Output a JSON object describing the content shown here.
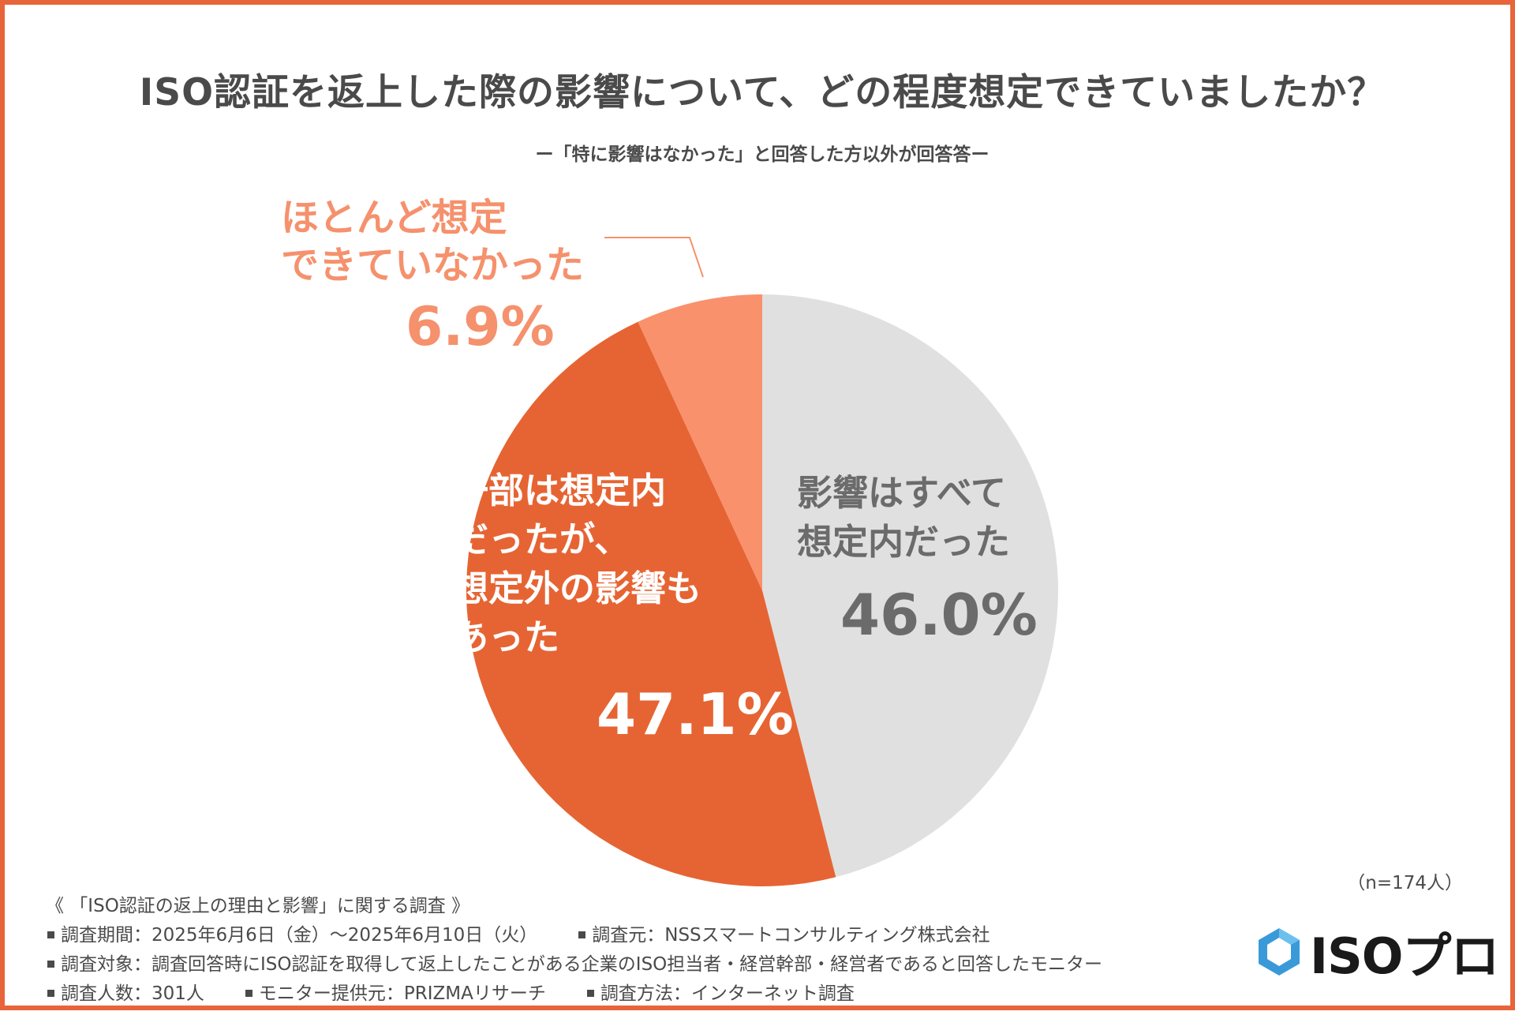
{
  "title": "ISO認証を返上した際の影響について、どの程度想定できていましたか？",
  "subtitle": "ー「特に影響はなかった」と回答した方以外が回答答ー",
  "chart_data": {
    "type": "pie",
    "title": "ISO認証を返上した際の影響について、どの程度想定できていましたか？",
    "slices": [
      {
        "label": "影響はすべて想定内だった",
        "value": 46.0,
        "value_label": "46.0%",
        "color": "#e0e0e0"
      },
      {
        "label": "一部は想定内だったが、想定外の影響もあった",
        "value": 47.1,
        "value_label": "47.1%",
        "color": "#e66433"
      },
      {
        "label": "ほとんど想定できていなかった",
        "value": 6.9,
        "value_label": "6.9%",
        "color": "#f9916d"
      }
    ]
  },
  "labels": {
    "none_line1": "ほとんど想定",
    "none_line2": "できていなかった",
    "none_pct": "6.9%",
    "part_line1": "一部は想定内",
    "part_line2": "だったが、",
    "part_line3": "想定外の影響も",
    "part_line4": "あった",
    "part_pct": "47.1%",
    "all_line1": "影響はすべて",
    "all_line2": "想定内だった",
    "all_pct": "46.0%"
  },
  "n_label": "（n=174人）",
  "footer": {
    "survey_name": "《 「ISO認証の返上の理由と影響」に関する調査 》",
    "period": "調査期間：2025年6月6日（金）〜2025年6月10日（火）",
    "source": "調査元：NSSスマートコンサルティング株式会社",
    "target": "調査対象：調査回答時にISO認証を取得して返上したことがある企業のISO担当者・経営幹部・経営者であると回答したモニター",
    "count": "調査人数：301人",
    "provider": "モニター提供元：PRIZMAリサーチ",
    "method": "調査方法：インターネット調査"
  },
  "logo": {
    "text": "ISOプロ",
    "accent": "#3a9ad9"
  }
}
